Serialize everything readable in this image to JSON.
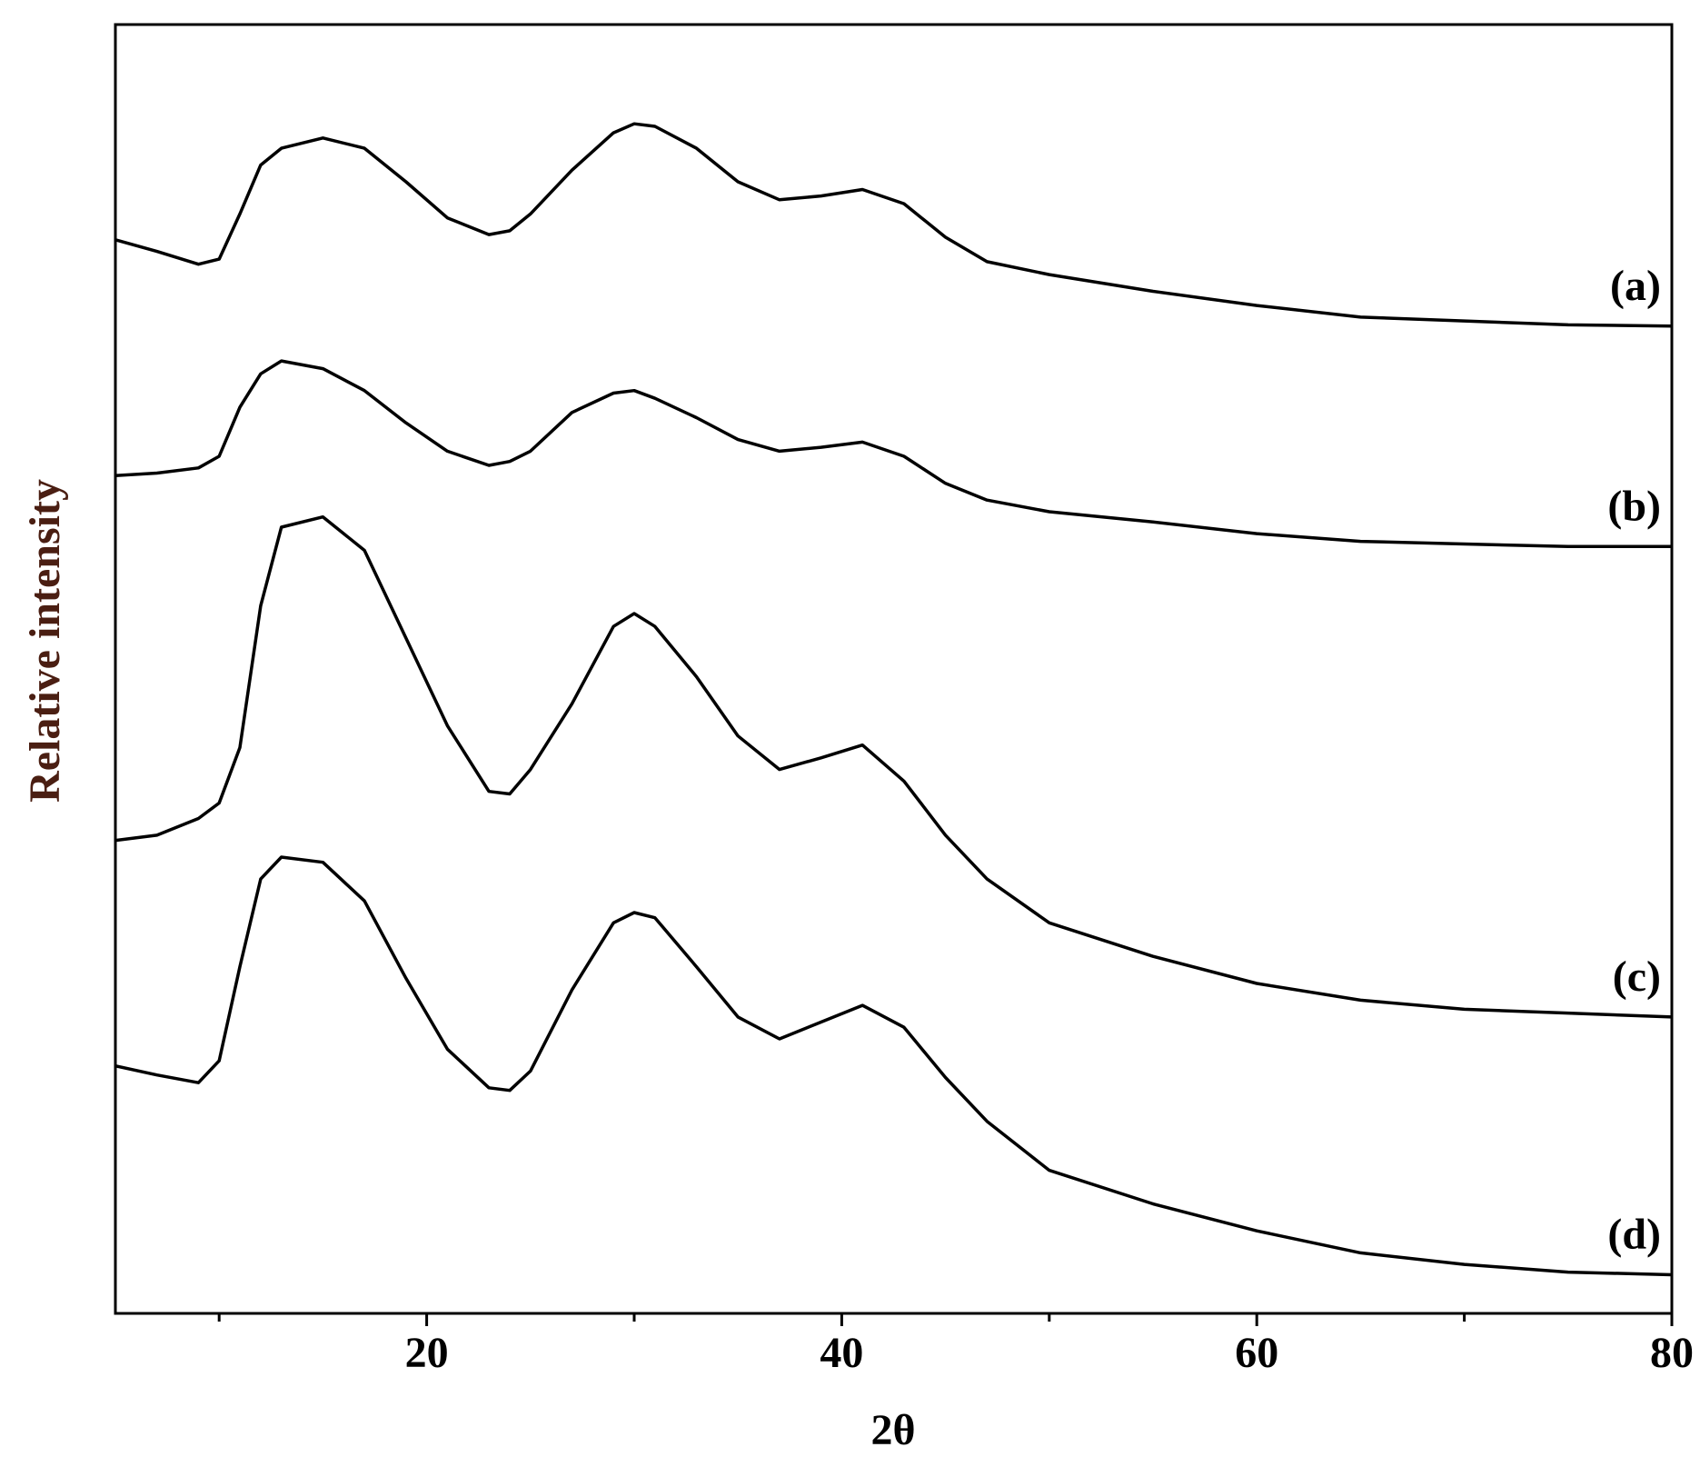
{
  "chart_data": {
    "type": "line",
    "xlabel": "2θ",
    "ylabel": "Relative intensity",
    "xlim": [
      5,
      80
    ],
    "xticks": [
      20,
      40,
      60,
      80
    ],
    "xminor_ticks": [
      10,
      30,
      50,
      70
    ],
    "ylim": [
      0,
      100
    ],
    "x": [
      5,
      7,
      9,
      10,
      11,
      12,
      13,
      15,
      17,
      19,
      21,
      23,
      24,
      25,
      27,
      29,
      30,
      31,
      33,
      35,
      37,
      39,
      41,
      43,
      45,
      47,
      50,
      55,
      60,
      65,
      70,
      75,
      80
    ],
    "series": [
      {
        "name": "(a)",
        "color": "#000000",
        "values": [
          83.3,
          82.4,
          81.4,
          81.8,
          85.3,
          89.1,
          90.4,
          91.2,
          90.4,
          87.8,
          85.0,
          83.7,
          84.0,
          85.3,
          88.7,
          91.6,
          92.3,
          92.1,
          90.4,
          87.8,
          86.4,
          86.7,
          87.2,
          86.1,
          83.5,
          81.6,
          80.6,
          79.3,
          78.2,
          77.3,
          77.0,
          76.7,
          76.6
        ]
      },
      {
        "name": "(b)",
        "color": "#000000",
        "values": [
          65.0,
          65.2,
          65.6,
          66.5,
          70.3,
          72.9,
          73.9,
          73.3,
          71.6,
          69.1,
          66.9,
          65.8,
          66.1,
          66.9,
          69.9,
          71.4,
          71.6,
          71.0,
          69.5,
          67.8,
          66.9,
          67.2,
          67.6,
          66.5,
          64.4,
          63.1,
          62.2,
          61.4,
          60.5,
          59.9,
          59.7,
          59.5,
          59.5
        ]
      },
      {
        "name": "(c)",
        "color": "#000000",
        "values": [
          36.7,
          37.1,
          38.4,
          39.6,
          43.9,
          54.9,
          61.0,
          61.8,
          59.2,
          52.4,
          45.6,
          40.5,
          40.3,
          42.2,
          47.3,
          53.3,
          54.3,
          53.3,
          49.4,
          44.8,
          42.2,
          43.1,
          44.1,
          41.3,
          37.1,
          33.7,
          30.3,
          27.7,
          25.6,
          24.3,
          23.6,
          23.3,
          23.0
        ]
      },
      {
        "name": "(d)",
        "color": "#000000",
        "values": [
          19.2,
          18.5,
          17.9,
          19.6,
          26.9,
          33.7,
          35.4,
          35.0,
          32.0,
          26.0,
          20.5,
          17.5,
          17.3,
          18.8,
          25.1,
          30.3,
          31.1,
          30.7,
          26.9,
          23.0,
          21.3,
          22.6,
          23.9,
          22.2,
          18.3,
          14.9,
          11.1,
          8.5,
          6.4,
          4.7,
          3.8,
          3.2,
          3.0
        ]
      }
    ]
  }
}
